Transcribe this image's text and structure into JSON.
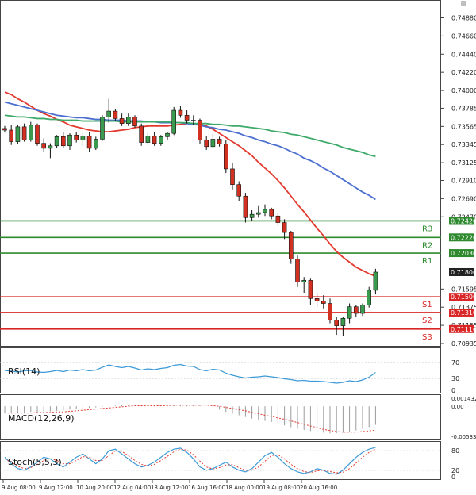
{
  "colors": {
    "bull": "#3a9a4e",
    "bear": "#d23020",
    "ma_fast": "#e23a2e",
    "ma_mid": "#4a6fcf",
    "ma_slow": "#3daa6a",
    "resistance": "#2f8a2f",
    "support": "#d92626",
    "osc_line": "#3c9ad8",
    "osc_signal": "#e23a2e",
    "grid": "#c8c8c8",
    "frame": "#444444",
    "price_tag": "#222222"
  },
  "chart_data": [
    {
      "type": "candlestick",
      "title": "",
      "ylim": [
        0.70935,
        0.75
      ],
      "y_ticks": [
        "0.74880",
        "0.74660",
        "0.74440",
        "0.74220",
        "0.74000",
        "0.73785",
        "0.73565",
        "0.73345",
        "0.73125",
        "0.72910",
        "0.72690",
        "0.72470",
        "0.71595",
        "0.71375",
        "0.71155",
        "0.70935"
      ],
      "x_ticks": [
        "9 Aug 08:00",
        "9 Aug 12:00",
        "10 Aug 20:00",
        "12 Aug 04:00",
        "13 Aug 12:00",
        "16 Aug 16:00",
        "18 Aug 00:00",
        "19 Aug 08:00",
        "20 Aug 16:00"
      ],
      "last_price": "0.71800",
      "candles": [
        [
          0.7354,
          0.7357,
          0.7349,
          0.7352
        ],
        [
          0.7352,
          0.7358,
          0.7334,
          0.7338
        ],
        [
          0.7338,
          0.7358,
          0.7335,
          0.7356
        ],
        [
          0.7356,
          0.736,
          0.7338,
          0.734
        ],
        [
          0.734,
          0.7362,
          0.7338,
          0.7358
        ],
        [
          0.7358,
          0.736,
          0.7333,
          0.7336
        ],
        [
          0.7336,
          0.7342,
          0.7326,
          0.733
        ],
        [
          0.733,
          0.7336,
          0.7318,
          0.7333
        ],
        [
          0.7333,
          0.7346,
          0.733,
          0.7344
        ],
        [
          0.7344,
          0.735,
          0.733,
          0.7333
        ],
        [
          0.7333,
          0.7348,
          0.7328,
          0.7346
        ],
        [
          0.7346,
          0.735,
          0.7337,
          0.734
        ],
        [
          0.734,
          0.7348,
          0.7333,
          0.7345
        ],
        [
          0.7345,
          0.735,
          0.7326,
          0.733
        ],
        [
          0.733,
          0.7344,
          0.7328,
          0.7341
        ],
        [
          0.7341,
          0.737,
          0.7339,
          0.7368
        ],
        [
          0.7368,
          0.739,
          0.7361,
          0.7375
        ],
        [
          0.7375,
          0.7377,
          0.7363,
          0.7366
        ],
        [
          0.7366,
          0.7372,
          0.7357,
          0.736
        ],
        [
          0.736,
          0.7372,
          0.7357,
          0.7368
        ],
        [
          0.7368,
          0.737,
          0.7355,
          0.7357
        ],
        [
          0.7357,
          0.736,
          0.7333,
          0.7337
        ],
        [
          0.7337,
          0.7348,
          0.7334,
          0.7345
        ],
        [
          0.7345,
          0.735,
          0.7333,
          0.7336
        ],
        [
          0.7336,
          0.7346,
          0.7333,
          0.7344
        ],
        [
          0.7344,
          0.735,
          0.734,
          0.7348
        ],
        [
          0.7348,
          0.738,
          0.7346,
          0.7376
        ],
        [
          0.7376,
          0.7381,
          0.7367,
          0.737
        ],
        [
          0.737,
          0.7376,
          0.736,
          0.7364
        ],
        [
          0.7364,
          0.737,
          0.7358,
          0.7364
        ],
        [
          0.7364,
          0.7366,
          0.7335,
          0.734
        ],
        [
          0.734,
          0.7345,
          0.7328,
          0.7332
        ],
        [
          0.7332,
          0.7348,
          0.733,
          0.7341
        ],
        [
          0.7341,
          0.7344,
          0.7332,
          0.7335
        ],
        [
          0.7335,
          0.734,
          0.73,
          0.7305
        ],
        [
          0.7305,
          0.7312,
          0.728,
          0.7286
        ],
        [
          0.7286,
          0.729,
          0.7266,
          0.7272
        ],
        [
          0.7272,
          0.7276,
          0.724,
          0.7246
        ],
        [
          0.7246,
          0.7255,
          0.7242,
          0.725
        ],
        [
          0.725,
          0.726,
          0.7246,
          0.7252
        ],
        [
          0.7252,
          0.7262,
          0.7248,
          0.7256
        ],
        [
          0.7256,
          0.7258,
          0.7244,
          0.7248
        ],
        [
          0.7248,
          0.7252,
          0.7236,
          0.724
        ],
        [
          0.724,
          0.7244,
          0.722,
          0.7228
        ],
        [
          0.7228,
          0.723,
          0.719,
          0.7196
        ],
        [
          0.7196,
          0.72,
          0.7162,
          0.7168
        ],
        [
          0.7168,
          0.7174,
          0.7155,
          0.717
        ],
        [
          0.717,
          0.7172,
          0.714,
          0.7148
        ],
        [
          0.7148,
          0.7155,
          0.7138,
          0.7145
        ],
        [
          0.7145,
          0.7152,
          0.7136,
          0.7142
        ],
        [
          0.7142,
          0.7148,
          0.7118,
          0.7122
        ],
        [
          0.7122,
          0.7126,
          0.7104,
          0.7115
        ],
        [
          0.7115,
          0.7126,
          0.7103,
          0.7124
        ],
        [
          0.7124,
          0.7142,
          0.7118,
          0.7138
        ],
        [
          0.7138,
          0.714,
          0.7126,
          0.713
        ],
        [
          0.713,
          0.7142,
          0.7127,
          0.714
        ],
        [
          0.714,
          0.7162,
          0.7137,
          0.7158
        ],
        [
          0.7158,
          0.7184,
          0.7153,
          0.718
        ]
      ],
      "moving_averages": [
        {
          "values": [
            0.7398,
            0.7395,
            0.739,
            0.7386,
            0.7381,
            0.7376,
            0.7372,
            0.7369,
            0.7365,
            0.7362,
            0.7358,
            0.7356,
            0.7354,
            0.7352,
            0.7351,
            0.735,
            0.735,
            0.7351,
            0.7352,
            0.7353,
            0.7355,
            0.7356,
            0.7357,
            0.7357,
            0.7357,
            0.7357,
            0.7358,
            0.7359,
            0.736,
            0.736,
            0.7359,
            0.7357,
            0.7353,
            0.7348,
            0.7343,
            0.7338,
            0.7333,
            0.7327,
            0.7321,
            0.7313,
            0.7306,
            0.7299,
            0.7291,
            0.7282,
            0.7272,
            0.7262,
            0.7253,
            0.7243,
            0.7233,
            0.7224,
            0.7214,
            0.7205,
            0.7198,
            0.7192,
            0.7186,
            0.7182,
            0.7178,
            0.7175
          ]
        },
        {
          "values": [
            0.7386,
            0.7384,
            0.7382,
            0.738,
            0.7378,
            0.7376,
            0.7374,
            0.7372,
            0.737,
            0.7369,
            0.7368,
            0.7367,
            0.7367,
            0.7366,
            0.7365,
            0.7365,
            0.7364,
            0.7364,
            0.7364,
            0.7363,
            0.7363,
            0.7363,
            0.7362,
            0.7362,
            0.7361,
            0.7361,
            0.7361,
            0.7361,
            0.736,
            0.7359,
            0.7358,
            0.7356,
            0.7355,
            0.7353,
            0.7352,
            0.735,
            0.7348,
            0.7345,
            0.7343,
            0.734,
            0.7338,
            0.7335,
            0.7333,
            0.733,
            0.7326,
            0.7323,
            0.7318,
            0.7315,
            0.7311,
            0.7306,
            0.7302,
            0.7297,
            0.7292,
            0.7287,
            0.7282,
            0.7277,
            0.7273,
            0.7268
          ]
        },
        {
          "values": [
            0.737,
            0.7369,
            0.7368,
            0.7368,
            0.7367,
            0.7366,
            0.7366,
            0.7365,
            0.7365,
            0.7364,
            0.7364,
            0.7364,
            0.7363,
            0.7363,
            0.7363,
            0.7363,
            0.7363,
            0.7363,
            0.7362,
            0.7362,
            0.7362,
            0.7362,
            0.7362,
            0.7362,
            0.7362,
            0.7362,
            0.7361,
            0.7361,
            0.7361,
            0.736,
            0.736,
            0.736,
            0.7359,
            0.7359,
            0.7358,
            0.7357,
            0.7357,
            0.7356,
            0.7355,
            0.7354,
            0.7353,
            0.7351,
            0.735,
            0.7349,
            0.7347,
            0.7346,
            0.7344,
            0.7342,
            0.734,
            0.7338,
            0.7336,
            0.7334,
            0.7331,
            0.7329,
            0.7327,
            0.7325,
            0.7322,
            0.732
          ]
        }
      ],
      "levels": [
        {
          "label": "R3",
          "value": 0.7242,
          "tag": "0.72420",
          "kind": "resistance"
        },
        {
          "label": "R2",
          "value": 0.7222,
          "tag": "0.72220",
          "kind": "resistance"
        },
        {
          "label": "R1",
          "value": 0.7203,
          "tag": "0.72030",
          "kind": "resistance"
        },
        {
          "label": "S1",
          "value": 0.715,
          "tag": "0.71500",
          "kind": "support"
        },
        {
          "label": "S2",
          "value": 0.7131,
          "tag": "0.71310",
          "kind": "support"
        },
        {
          "label": "S3",
          "value": 0.7111,
          "tag": "0.71110",
          "kind": "support"
        }
      ]
    },
    {
      "type": "line",
      "title": "RSI(14)",
      "ylim": [
        0,
        100
      ],
      "y_ticks": [
        "70",
        "30",
        "0"
      ],
      "series": [
        {
          "values": [
            50,
            48,
            46,
            49,
            50,
            46,
            45,
            47,
            50,
            47,
            51,
            49,
            52,
            49,
            51,
            58,
            64,
            60,
            57,
            60,
            56,
            51,
            54,
            52,
            55,
            57,
            63,
            65,
            61,
            60,
            52,
            49,
            53,
            51,
            43,
            38,
            34,
            31,
            33,
            34,
            36,
            34,
            32,
            29,
            27,
            24,
            25,
            23,
            23,
            22,
            20,
            18,
            20,
            24,
            22,
            26,
            33,
            45
          ]
        }
      ]
    },
    {
      "type": "bar",
      "title": "MACD(12,26,9)",
      "ylim": [
        -0.005337,
        0.001432
      ],
      "y_ticks": [
        "0.001432",
        "0.00",
        "-0.005337"
      ],
      "series": [
        {
          "values": [
            -0.0012,
            -0.0012,
            -0.0012,
            -0.0011,
            -0.001,
            -0.001,
            -0.0009,
            -0.0009,
            -0.0008,
            -0.0007,
            -0.0006,
            -0.0005,
            -0.0004,
            -0.0003,
            -0.0002,
            -0.0001,
            0.0,
            0.0001,
            0.0002,
            0.0002,
            0.0002,
            0.0001,
            0.0001,
            0.0001,
            0.0001,
            0.0002,
            0.0003,
            0.0003,
            0.0003,
            0.0003,
            0.0002,
            0.0,
            -0.0003,
            -0.0006,
            -0.001,
            -0.0013,
            -0.0016,
            -0.0019,
            -0.0022,
            -0.0024,
            -0.0026,
            -0.0028,
            -0.0031,
            -0.0034,
            -0.0037,
            -0.004,
            -0.0042,
            -0.0044,
            -0.0046,
            -0.0047,
            -0.0048,
            -0.0048,
            -0.0047,
            -0.0045,
            -0.0043,
            -0.004,
            -0.0037,
            -0.0033
          ]
        },
        {
          "values": [
            -0.0012,
            -0.0012,
            -0.0012,
            -0.0012,
            -0.0012,
            -0.0011,
            -0.0011,
            -0.0011,
            -0.001,
            -0.001,
            -0.0009,
            -0.0008,
            -0.0007,
            -0.0006,
            -0.0005,
            -0.0004,
            -0.0003,
            -0.0002,
            -0.0001,
            0.0,
            0.0001,
            0.0001,
            0.0001,
            0.0001,
            0.0001,
            0.0001,
            0.0002,
            0.0002,
            0.0002,
            0.0002,
            0.0002,
            0.0002,
            0.0001,
            0.0,
            -0.0002,
            -0.0004,
            -0.0006,
            -0.0008,
            -0.0011,
            -0.0013,
            -0.0016,
            -0.0018,
            -0.0021,
            -0.0023,
            -0.0026,
            -0.0029,
            -0.0032,
            -0.0035,
            -0.0038,
            -0.0041,
            -0.0043,
            -0.0045,
            -0.0046,
            -0.0046,
            -0.0046,
            -0.0045,
            -0.0044,
            -0.0042
          ]
        }
      ]
    },
    {
      "type": "line",
      "title": "Stoch(5,5,3)",
      "ylim": [
        0,
        100
      ],
      "y_ticks": [
        "80",
        "20",
        "0"
      ],
      "series": [
        {
          "values": [
            60,
            40,
            25,
            20,
            30,
            45,
            60,
            55,
            40,
            30,
            45,
            60,
            70,
            55,
            40,
            55,
            80,
            85,
            70,
            55,
            40,
            30,
            35,
            45,
            60,
            75,
            85,
            88,
            75,
            55,
            30,
            20,
            25,
            35,
            45,
            30,
            20,
            15,
            25,
            45,
            65,
            75,
            60,
            40,
            25,
            15,
            10,
            15,
            25,
            20,
            10,
            8,
            20,
            40,
            60,
            75,
            85,
            90
          ]
        },
        {
          "values": [
            55,
            45,
            32,
            25,
            28,
            38,
            50,
            56,
            50,
            40,
            40,
            50,
            62,
            60,
            50,
            50,
            65,
            80,
            78,
            65,
            50,
            38,
            33,
            38,
            50,
            63,
            77,
            85,
            82,
            68,
            48,
            30,
            24,
            28,
            36,
            37,
            28,
            20,
            20,
            30,
            48,
            65,
            68,
            55,
            38,
            25,
            16,
            13,
            18,
            20,
            16,
            12,
            14,
            25,
            42,
            60,
            75,
            85
          ]
        }
      ]
    }
  ]
}
